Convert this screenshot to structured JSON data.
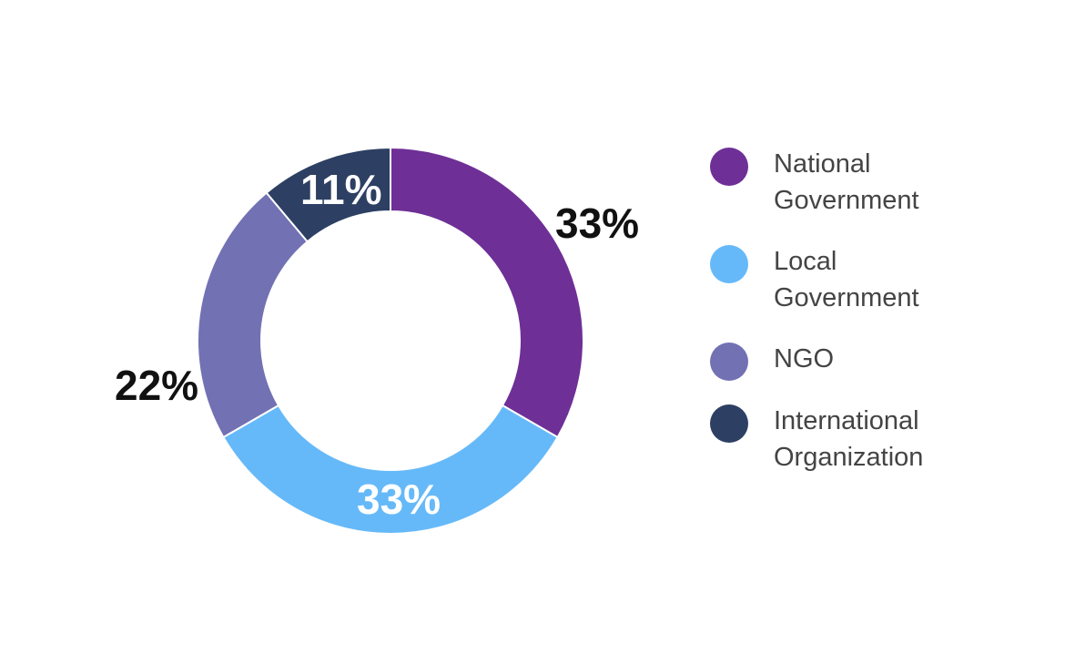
{
  "chart_data": {
    "type": "pie",
    "donut": true,
    "title": "",
    "categories": [
      "National Government",
      "Local Government",
      "NGO",
      "International Organization"
    ],
    "values": [
      33,
      33,
      22,
      11
    ],
    "labels": [
      "33%",
      "33%",
      "22%",
      "11%"
    ],
    "colors": [
      "#6e2f96",
      "#66b9f8",
      "#7271b3",
      "#2d3f62"
    ],
    "legend_position": "right",
    "start_angle_deg": 0,
    "direction": "clockwise"
  },
  "legend": {
    "items": [
      {
        "line1": "National",
        "line2": "Government",
        "color": "#6e2f96"
      },
      {
        "line1": "Local",
        "line2": "Government",
        "color": "#66b9f8"
      },
      {
        "line1": "NGO",
        "line2": "",
        "color": "#7271b3"
      },
      {
        "line1": "International",
        "line2": "Organization",
        "color": "#2d3f62"
      }
    ]
  },
  "slice_labels": {
    "national": "33%",
    "local": "33%",
    "ngo": "22%",
    "international": "11%"
  }
}
